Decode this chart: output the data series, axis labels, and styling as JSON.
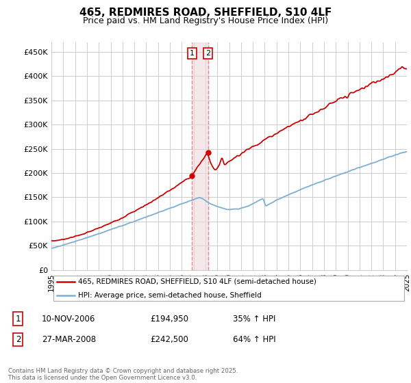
{
  "title": "465, REDMIRES ROAD, SHEFFIELD, S10 4LF",
  "subtitle": "Price paid vs. HM Land Registry's House Price Index (HPI)",
  "red_label": "465, REDMIRES ROAD, SHEFFIELD, S10 4LF (semi-detached house)",
  "blue_label": "HPI: Average price, semi-detached house, Sheffield",
  "transaction1_date": "10-NOV-2006",
  "transaction1_price": 194950,
  "transaction1_hpi": "35% ↑ HPI",
  "transaction2_date": "27-MAR-2008",
  "transaction2_price": 242500,
  "transaction2_hpi": "64% ↑ HPI",
  "footer": "Contains HM Land Registry data © Crown copyright and database right 2025.\nThis data is licensed under the Open Government Licence v3.0.",
  "ylim": [
    0,
    470000
  ],
  "yticks": [
    0,
    50000,
    100000,
    150000,
    200000,
    250000,
    300000,
    350000,
    400000,
    450000
  ],
  "ytick_labels": [
    "£0",
    "£50K",
    "£100K",
    "£150K",
    "£200K",
    "£250K",
    "£300K",
    "£350K",
    "£400K",
    "£450K"
  ],
  "background_color": "#ffffff",
  "grid_color": "#cccccc",
  "red_color": "#cc0000",
  "blue_color": "#7aaed4",
  "vline_color": "#e88888",
  "shade_color": "#f0d8dc"
}
